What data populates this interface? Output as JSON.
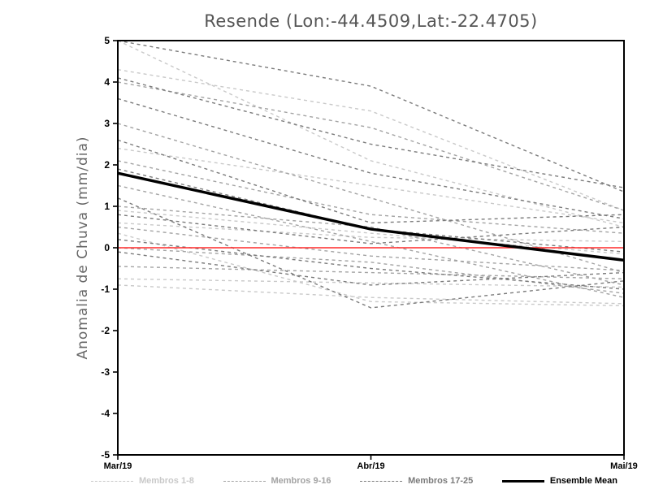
{
  "title": "Resende (Lon:-44.4509,Lat:-22.4705)",
  "chart_data": {
    "type": "line",
    "title": "Resende (Lon:-44.4509,Lat:-22.4705)",
    "xlabel": "",
    "ylabel": "Anomalia de Chuva (mm/dia)",
    "x_categories": [
      "Mar/19",
      "Abr/19",
      "Mai/19"
    ],
    "ylim": [
      -5,
      5
    ],
    "yticks": [
      -5,
      -4,
      -3,
      -2,
      -1,
      0,
      1,
      2,
      3,
      4,
      5
    ],
    "grid": false,
    "legend_position": "bottom",
    "zero_line": {
      "y": 0,
      "color": "#ff2a2a"
    },
    "groups": [
      {
        "name": "Membros 1-8",
        "color": "#c9c9c9",
        "dash": "4,4",
        "members": [
          [
            5.0,
            2.1,
            0.5
          ],
          [
            4.3,
            3.3,
            0.9
          ],
          [
            2.4,
            1.5,
            0.6
          ],
          [
            0.9,
            0.35,
            -0.15
          ],
          [
            0.6,
            0.25,
            0.15
          ],
          [
            -0.75,
            -0.85,
            -0.95
          ],
          [
            -0.9,
            -1.2,
            -1.35
          ],
          [
            0.35,
            -1.3,
            -1.4
          ]
        ]
      },
      {
        "name": "Membros 9-16",
        "color": "#a3a3a3",
        "dash": "4,4",
        "members": [
          [
            4.0,
            2.9,
            0.9
          ],
          [
            3.0,
            1.2,
            -0.6
          ],
          [
            2.1,
            0.8,
            0.35
          ],
          [
            1.0,
            0.5,
            -0.9
          ],
          [
            0.5,
            -0.2,
            -0.55
          ],
          [
            0.0,
            -0.35,
            -1.1
          ],
          [
            -0.45,
            -0.6,
            -0.75
          ],
          [
            1.5,
            0.15,
            -1.2
          ]
        ]
      },
      {
        "name": "Membros 17-25",
        "color": "#7b7b7b",
        "dash": "4,4",
        "members": [
          [
            5.0,
            3.9,
            1.35
          ],
          [
            4.1,
            2.5,
            1.45
          ],
          [
            3.6,
            1.8,
            0.7
          ],
          [
            2.6,
            0.6,
            0.8
          ],
          [
            1.9,
            0.45,
            -0.1
          ],
          [
            0.8,
            0.1,
            0.5
          ],
          [
            0.2,
            -0.5,
            -1.0
          ],
          [
            -0.1,
            -0.9,
            -0.6
          ],
          [
            1.2,
            -1.45,
            -0.8
          ]
        ]
      }
    ],
    "mean": {
      "name": "Ensemble Mean",
      "color": "#000000",
      "values": [
        1.8,
        0.45,
        -0.3
      ]
    }
  }
}
